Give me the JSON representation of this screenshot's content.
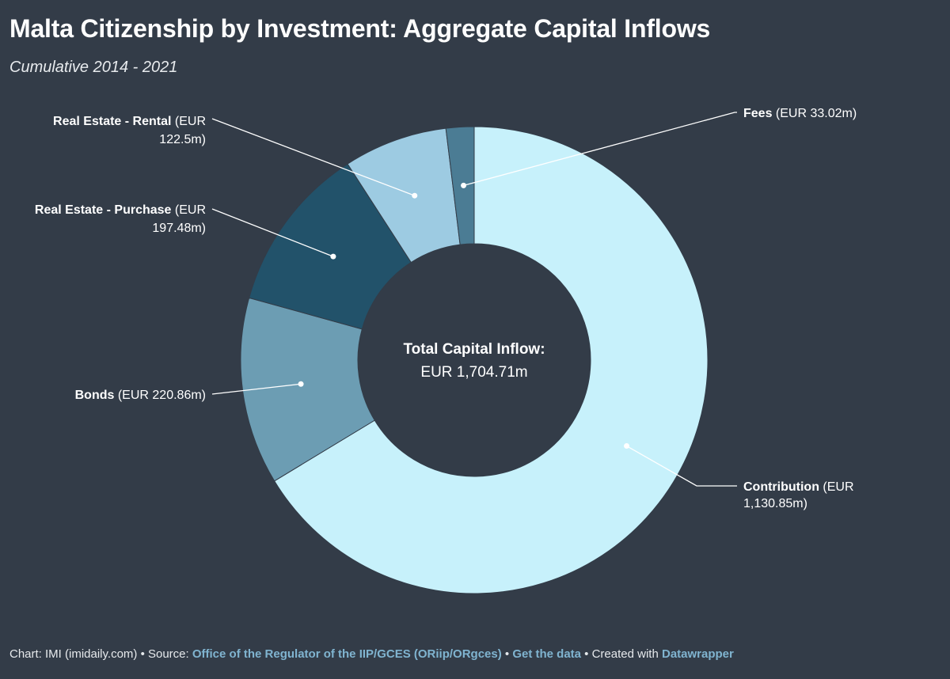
{
  "title": "Malta Citizenship by Investment: Aggregate Capital Inflows",
  "subtitle": "Cumulative 2014 - 2021",
  "chart_data": {
    "type": "pie",
    "variant": "donut",
    "center_label": {
      "title": "Total Capital Inflow:",
      "value": "EUR 1,704.71m"
    },
    "slices": [
      {
        "name": "Contribution",
        "value": 1130.85,
        "label_lines": [
          [
            "Contribution",
            " (EUR"
          ],
          [
            "",
            "1,130.85m)"
          ]
        ],
        "color": "#c7f1fb"
      },
      {
        "name": "Bonds",
        "value": 220.86,
        "label_lines": [
          [
            "Bonds",
            " (EUR 220.86m)"
          ]
        ],
        "color": "#6c9db3"
      },
      {
        "name": "Real Estate - Purchase",
        "value": 197.48,
        "label_lines": [
          [
            "Real Estate - Purchase",
            " (EUR"
          ],
          [
            "",
            "197.48m)"
          ]
        ],
        "color": "#22526a"
      },
      {
        "name": "Real Estate - Rental",
        "value": 122.5,
        "label_lines": [
          [
            "Real Estate - Rental",
            " (EUR"
          ],
          [
            "",
            "122.5m)"
          ]
        ],
        "color": "#9dcbe2"
      },
      {
        "name": "Fees",
        "value": 33.02,
        "label_lines": [
          [
            "Fees",
            " (EUR 33.02m)"
          ]
        ],
        "color": "#4b7c94"
      }
    ]
  },
  "footer": {
    "chart_credit": "Chart: IMI (imidaily.com) • Source: ",
    "source_link": "Office of the Regulator of the IIP/GCES (ORiip/ORgces)",
    "separator": " • ",
    "get_data": "Get the data",
    "created_with": " • Created with ",
    "tool": "Datawrapper"
  }
}
